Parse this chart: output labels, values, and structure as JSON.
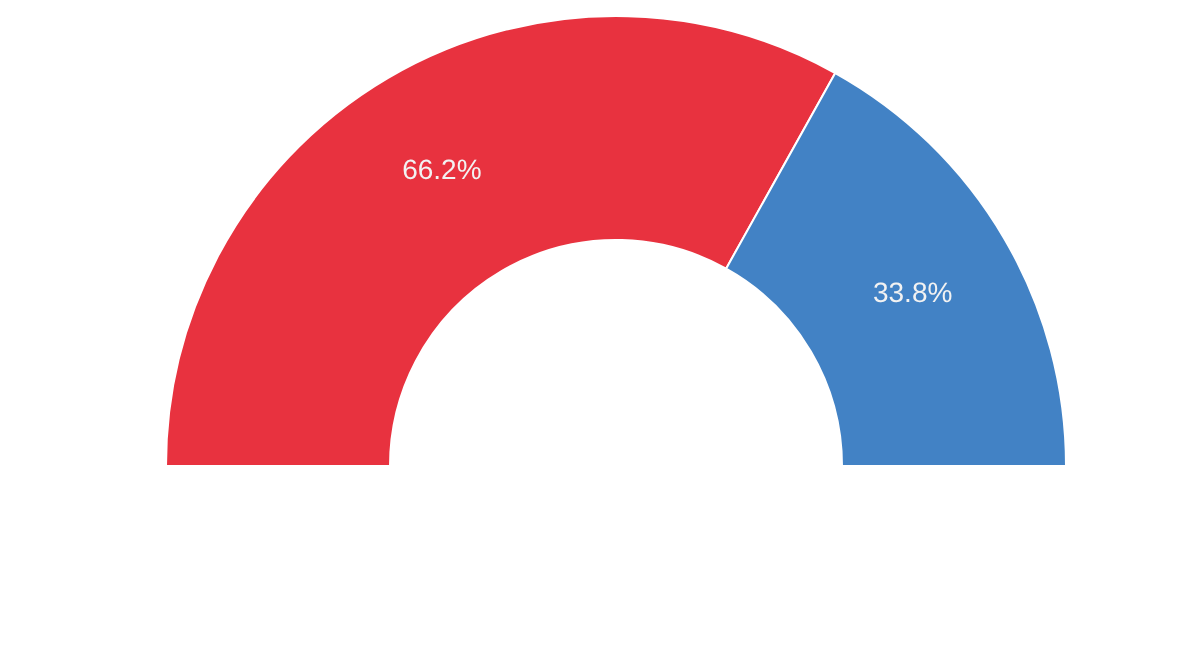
{
  "chart_data": {
    "type": "donut",
    "categories": [
      null,
      null
    ],
    "values": [
      66.2,
      33.8
    ],
    "colors": [
      "#e8323f",
      "#4282c5"
    ],
    "value_labels": [
      "66.2%",
      "33.8%"
    ]
  }
}
